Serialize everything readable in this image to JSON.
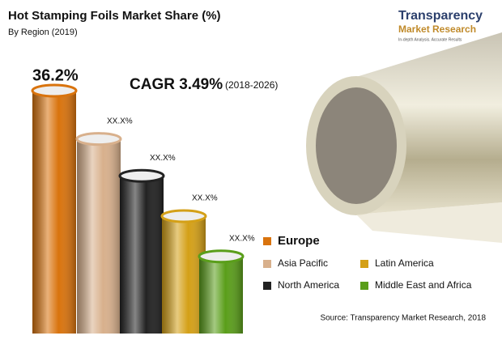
{
  "chart_data": {
    "type": "bar",
    "title": "Hot Stamping Foils Market Share (%)",
    "subtitle": "By Region (2019)",
    "categories": [
      "Europe",
      "Asia Pacific",
      "North America",
      "Latin America",
      "Middle East and Africa"
    ],
    "values": [
      36.2,
      29,
      23.5,
      17.5,
      11.5
    ],
    "value_labels": [
      "36.2%",
      "XX.X%",
      "XX.X%",
      "XX.X%",
      "XX.X%"
    ],
    "colors": [
      "#d9730d",
      "#d8b08c",
      "#222222",
      "#d4a017",
      "#5a9e1a"
    ],
    "annotation": {
      "label": "CAGR 3.49%",
      "period": "(2018-2026)"
    },
    "source": "Source: Transparency Market Research, 2018"
  },
  "logo": {
    "name": "Transparency",
    "subname": "Market Research",
    "tagline": "In-depth Analysis. Accurate Results"
  }
}
